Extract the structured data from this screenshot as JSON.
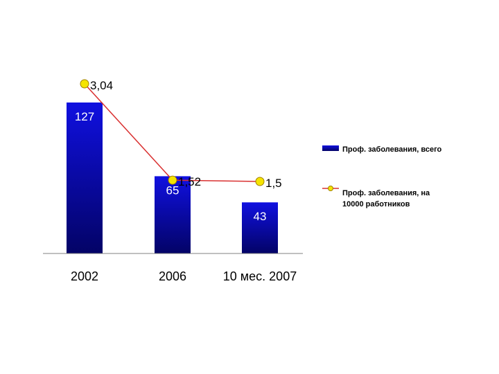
{
  "chart_data": {
    "type": "bar",
    "categories": [
      "2002",
      "2006",
      "10 мес. 2007"
    ],
    "series": [
      {
        "name": "Проф. заболевания, всего",
        "kind": "bar",
        "values": [
          127,
          65,
          43
        ],
        "labels": [
          "127",
          "65",
          "43"
        ],
        "color": "#0a0ad0"
      },
      {
        "name": "Проф. заболевания, на 10000 работников",
        "kind": "line",
        "values": [
          3.04,
          1.52,
          1.5
        ],
        "labels": [
          "3,04",
          "1,52",
          "1,5"
        ],
        "color": "#d93030",
        "marker_color": "#f5e400"
      }
    ],
    "legend": {
      "position": "right",
      "items": [
        {
          "label": "Проф. заболевания, всего"
        },
        {
          "label_lines": [
            "Проф. заболевания, на",
            "10000 работников"
          ]
        }
      ]
    },
    "grid": false
  }
}
